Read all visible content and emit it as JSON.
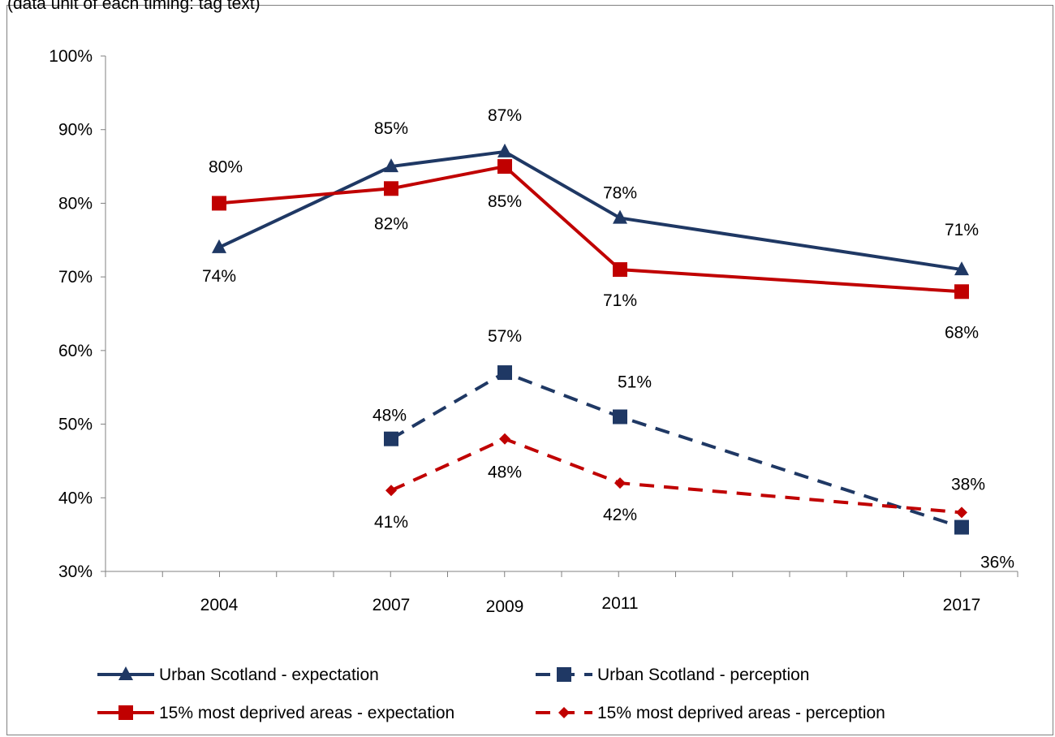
{
  "chart_data": {
    "type": "line",
    "subtitle": "(data unit of each timing: tag text)",
    "x": [
      2004,
      2007,
      2009,
      2011,
      2017
    ],
    "ylim": [
      30,
      100
    ],
    "yticks": [
      "30%",
      "40%",
      "50%",
      "60%",
      "70%",
      "80%",
      "90%",
      "100%"
    ],
    "series": [
      {
        "name": "Urban Scotland - expectation",
        "color": "#1f3864",
        "dash": false,
        "marker": "triangle",
        "values": [
          74,
          85,
          87,
          78,
          71
        ],
        "labels": [
          "74%",
          "85%",
          "87%",
          "78%",
          "71%"
        ]
      },
      {
        "name": "Urban Scotland - perception",
        "color": "#1f3864",
        "dash": true,
        "marker": "square",
        "values": [
          null,
          48,
          57,
          51,
          36
        ],
        "labels": [
          "",
          "48%",
          "57%",
          "51%",
          "36%"
        ]
      },
      {
        "name": "15% most deprived areas - expectation",
        "color": "#c00000",
        "dash": false,
        "marker": "square",
        "values": [
          80,
          82,
          85,
          71,
          68
        ],
        "labels": [
          "80%",
          "82%",
          "85%",
          "71%",
          "68%"
        ]
      },
      {
        "name": "15% most deprived areas - perception",
        "color": "#c00000",
        "dash": true,
        "marker": "diamond",
        "values": [
          null,
          41,
          48,
          42,
          38
        ],
        "labels": [
          "",
          "41%",
          "48%",
          "42%",
          "38%"
        ]
      }
    ],
    "legend_position": "bottom"
  }
}
